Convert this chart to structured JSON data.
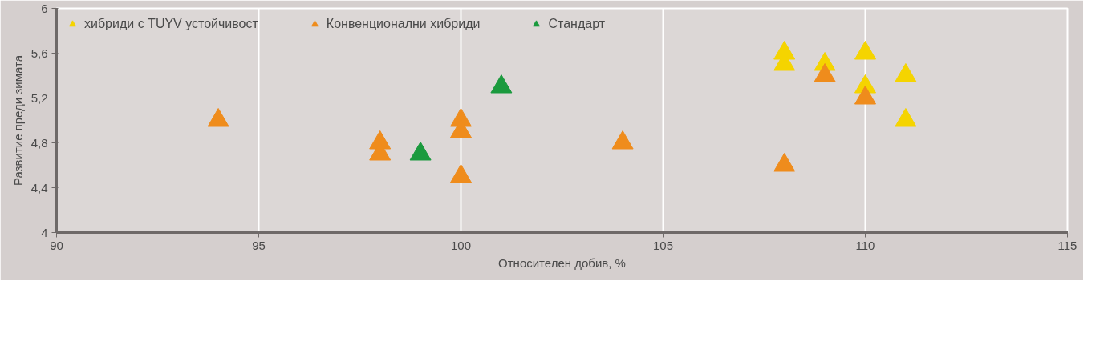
{
  "chart_data": {
    "type": "scatter",
    "xlabel": "Относителен добив, %",
    "ylabel": "Развитие преди зимата",
    "marker": "triangle",
    "grid": "x",
    "legend": "top left",
    "xlim": [
      90,
      115
    ],
    "xticks": [
      90,
      95,
      100,
      105,
      110,
      115
    ],
    "ylim": [
      4,
      6
    ],
    "yticks": [
      4,
      {
        "value": 4.4,
        "label": "4,4"
      },
      {
        "value": 4.8,
        "label": "4,8"
      },
      {
        "value": 5.2,
        "label": "5,2"
      },
      {
        "value": 5.6,
        "label": "5,6"
      },
      6
    ],
    "series": [
      {
        "name": "хибриди с TUYV устойчивост",
        "color": "#f5d400",
        "x": [
          108,
          108,
          109,
          110,
          110,
          111,
          111
        ],
        "values": [
          5.6,
          5.5,
          5.5,
          5.6,
          5.3,
          5.4,
          5.0
        ]
      },
      {
        "name": "Конвенционални хибриди",
        "color": "#ef8c1c",
        "x": [
          94,
          98,
          98,
          100,
          100,
          100,
          104,
          108,
          109,
          110
        ],
        "values": [
          5.0,
          4.8,
          4.7,
          5.0,
          4.9,
          4.5,
          4.8,
          4.6,
          5.4,
          5.2
        ]
      },
      {
        "name": "Стандарт",
        "color": "#1b9a3e",
        "x": [
          99,
          101
        ],
        "values": [
          4.7,
          5.3
        ]
      }
    ]
  }
}
